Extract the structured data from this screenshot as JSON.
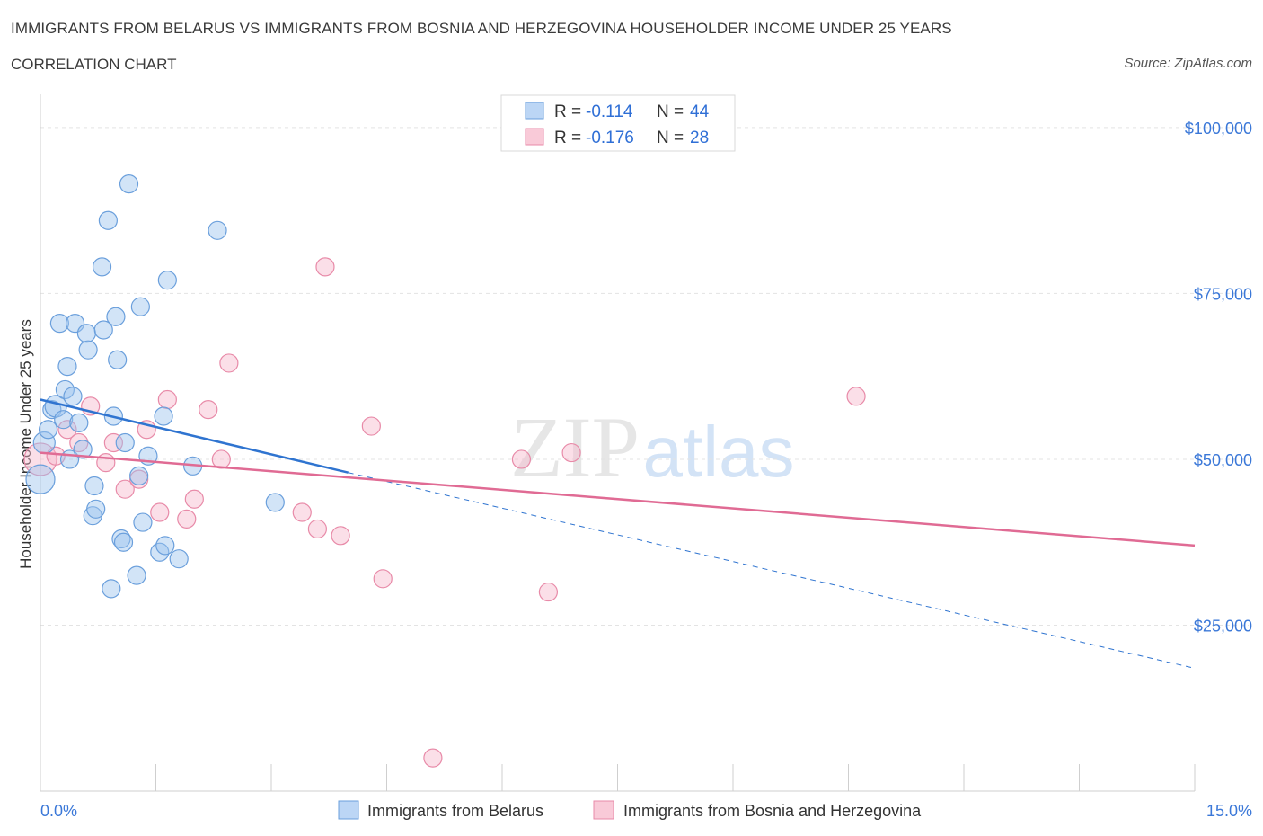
{
  "title": "IMMIGRANTS FROM BELARUS VS IMMIGRANTS FROM BOSNIA AND HERZEGOVINA HOUSEHOLDER INCOME UNDER 25 YEARS",
  "subtitle": "CORRELATION CHART",
  "source": "Source: ZipAtlas.com",
  "watermark": {
    "zip": "ZIP",
    "atlas": "atlas"
  },
  "legend": {
    "r_label": "R =",
    "n_label": "N =",
    "belarus": {
      "r": "-0.114",
      "n": "44"
    },
    "bosnia": {
      "r": "-0.176",
      "n": "28"
    }
  },
  "chart_data": {
    "type": "scatter",
    "title": "IMMIGRANTS FROM BELARUS VS IMMIGRANTS FROM BOSNIA AND HERZEGOVINA HOUSEHOLDER INCOME UNDER 25 YEARS",
    "xlabel": "",
    "ylabel": "Householder Income Under 25 years",
    "xlim": [
      0,
      15
    ],
    "ylim": [
      0,
      105000
    ],
    "x_tick_labels": {
      "left": "0.0%",
      "right": "15.0%"
    },
    "y_ticks": [
      {
        "value": 25000,
        "label": "$25,000"
      },
      {
        "value": 50000,
        "label": "$50,000"
      },
      {
        "value": 75000,
        "label": "$75,000"
      },
      {
        "value": 100000,
        "label": "$100,000"
      }
    ],
    "grid": true,
    "legend_position": "bottom",
    "series": [
      {
        "name": "Immigrants from Belarus",
        "color": "#9cc3ee",
        "stroke": "#6a9fdc",
        "trend_color": "#2f74d0",
        "trend": {
          "x0": 0.0,
          "y0": 59000,
          "x1": 4.0,
          "y1": 48000,
          "dash_x1": 15.0,
          "dash_y1": 18500
        },
        "points": [
          [
            0.0,
            47000,
            16
          ],
          [
            0.05,
            52500,
            12
          ],
          [
            0.1,
            54500,
            10
          ],
          [
            0.15,
            57500,
            10
          ],
          [
            0.2,
            58000,
            12
          ],
          [
            0.25,
            70500,
            10
          ],
          [
            0.3,
            56000,
            10
          ],
          [
            0.32,
            60500,
            10
          ],
          [
            0.35,
            64000,
            10
          ],
          [
            0.38,
            50000,
            10
          ],
          [
            0.42,
            59500,
            10
          ],
          [
            0.45,
            70500,
            10
          ],
          [
            0.5,
            55500,
            10
          ],
          [
            0.55,
            51500,
            10
          ],
          [
            0.6,
            69000,
            10
          ],
          [
            0.62,
            66500,
            10
          ],
          [
            0.68,
            41500,
            10
          ],
          [
            0.7,
            46000,
            10
          ],
          [
            0.72,
            42500,
            10
          ],
          [
            0.8,
            79000,
            10
          ],
          [
            0.82,
            69500,
            10
          ],
          [
            0.88,
            86000,
            10
          ],
          [
            0.92,
            30500,
            10
          ],
          [
            0.95,
            56500,
            10
          ],
          [
            0.98,
            71500,
            10
          ],
          [
            1.0,
            65000,
            10
          ],
          [
            1.05,
            38000,
            10
          ],
          [
            1.08,
            37500,
            10
          ],
          [
            1.1,
            52500,
            10
          ],
          [
            1.15,
            91500,
            10
          ],
          [
            1.25,
            32500,
            10
          ],
          [
            1.28,
            47500,
            10
          ],
          [
            1.3,
            73000,
            10
          ],
          [
            1.33,
            40500,
            10
          ],
          [
            1.4,
            50500,
            10
          ],
          [
            1.55,
            36000,
            10
          ],
          [
            1.6,
            56500,
            10
          ],
          [
            1.62,
            37000,
            10
          ],
          [
            1.65,
            77000,
            10
          ],
          [
            1.8,
            35000,
            10
          ],
          [
            1.98,
            49000,
            10
          ],
          [
            2.3,
            84500,
            10
          ],
          [
            3.05,
            43500,
            10
          ],
          [
            0.6,
            48000,
            0
          ]
        ]
      },
      {
        "name": "Immigrants from Bosnia and Herzegovina",
        "color": "#f6b9cb",
        "stroke": "#e88aa8",
        "trend_color": "#e06b94",
        "trend": {
          "x0": 0.0,
          "y0": 51000,
          "x1": 15.0,
          "y1": 37000
        },
        "points": [
          [
            0.0,
            50000,
            18
          ],
          [
            0.2,
            50500,
            10
          ],
          [
            0.35,
            54500,
            10
          ],
          [
            0.5,
            52500,
            10
          ],
          [
            0.65,
            58000,
            10
          ],
          [
            0.85,
            49500,
            10
          ],
          [
            0.95,
            52500,
            10
          ],
          [
            1.1,
            45500,
            10
          ],
          [
            1.28,
            47000,
            10
          ],
          [
            1.38,
            54500,
            10
          ],
          [
            1.55,
            42000,
            10
          ],
          [
            1.65,
            59000,
            10
          ],
          [
            1.9,
            41000,
            10
          ],
          [
            2.0,
            44000,
            10
          ],
          [
            2.18,
            57500,
            10
          ],
          [
            2.35,
            50000,
            10
          ],
          [
            2.45,
            64500,
            10
          ],
          [
            3.4,
            42000,
            10
          ],
          [
            3.6,
            39500,
            10
          ],
          [
            3.7,
            79000,
            10
          ],
          [
            3.9,
            38500,
            10
          ],
          [
            4.3,
            55000,
            10
          ],
          [
            4.45,
            32000,
            10
          ],
          [
            5.1,
            5000,
            10
          ],
          [
            6.25,
            50000,
            10
          ],
          [
            6.6,
            30000,
            10
          ],
          [
            6.9,
            51000,
            10
          ],
          [
            10.6,
            59500,
            10
          ]
        ]
      }
    ]
  }
}
